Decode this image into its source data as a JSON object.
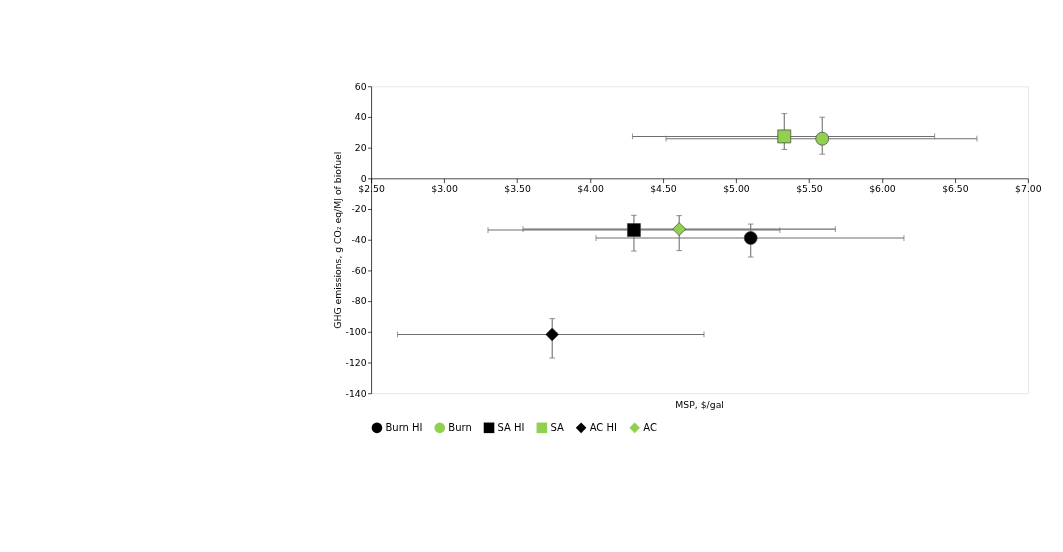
{
  "chart_data": {
    "type": "scatter",
    "xlabel": "MSP, $/gal",
    "ylabel": "GHG emissions, g CO₂ eq/MJ of biofuel",
    "xlim": [
      2.5,
      7.0
    ],
    "ylim": [
      -140,
      60
    ],
    "xticks": [
      {
        "value": 2.5,
        "label": "$2.50"
      },
      {
        "value": 3.0,
        "label": "$3.00"
      },
      {
        "value": 3.5,
        "label": "$3.50"
      },
      {
        "value": 4.0,
        "label": "$4.00"
      },
      {
        "value": 4.5,
        "label": "$4.50"
      },
      {
        "value": 5.0,
        "label": "$5.00"
      },
      {
        "value": 5.5,
        "label": "$5.50"
      },
      {
        "value": 6.0,
        "label": "$6.00"
      },
      {
        "value": 6.5,
        "label": "$6.50"
      },
      {
        "value": 7.0,
        "label": "$7.00"
      }
    ],
    "yticks": [
      -140,
      -120,
      -100,
      -80,
      -60,
      -40,
      -20,
      0,
      20,
      40,
      60
    ],
    "grid": false,
    "legend": "bottom",
    "series": [
      {
        "name": "Burn HI",
        "color": "#000000",
        "marker": "circle",
        "x": [
          5.1
        ],
        "values": [
          -38.8
        ],
        "errors": [
          [
            -51.2,
            -29.7
          ]
        ],
        "xerrors": [
          [
            4.04,
            6.15
          ]
        ]
      },
      {
        "name": "Burn",
        "color": "#92d050",
        "marker": "circle",
        "x": [
          5.59
        ],
        "values": [
          25.9
        ],
        "errors": [
          [
            15.8,
            39.9
          ]
        ],
        "xerrors": [
          [
            4.52,
            6.65
          ]
        ]
      },
      {
        "name": "SA HI",
        "color": "#000000",
        "marker": "square",
        "x": [
          4.3
        ],
        "values": [
          -33.6
        ],
        "errors": [
          [
            -47.3,
            -24.0
          ]
        ],
        "xerrors": [
          [
            3.3,
            5.3
          ]
        ]
      },
      {
        "name": "SA",
        "color": "#92d050",
        "marker": "square",
        "x": [
          5.33
        ],
        "values": [
          27.4
        ],
        "errors": [
          [
            18.9,
            42.3
          ]
        ],
        "xerrors": [
          [
            4.29,
            6.36
          ]
        ]
      },
      {
        "name": "AC HI",
        "color": "#000000",
        "marker": "diamond",
        "x": [
          3.74
        ],
        "values": [
          -101.6
        ],
        "errors": [
          [
            -117.0,
            -91.3
          ]
        ],
        "xerrors": [
          [
            2.68,
            4.78
          ]
        ]
      },
      {
        "name": "AC",
        "color": "#92d050",
        "marker": "diamond",
        "x": [
          4.61
        ],
        "values": [
          -33.0
        ],
        "errors": [
          [
            -47.0,
            -24.2
          ]
        ],
        "xerrors": [
          [
            3.54,
            5.68
          ]
        ]
      }
    ]
  }
}
